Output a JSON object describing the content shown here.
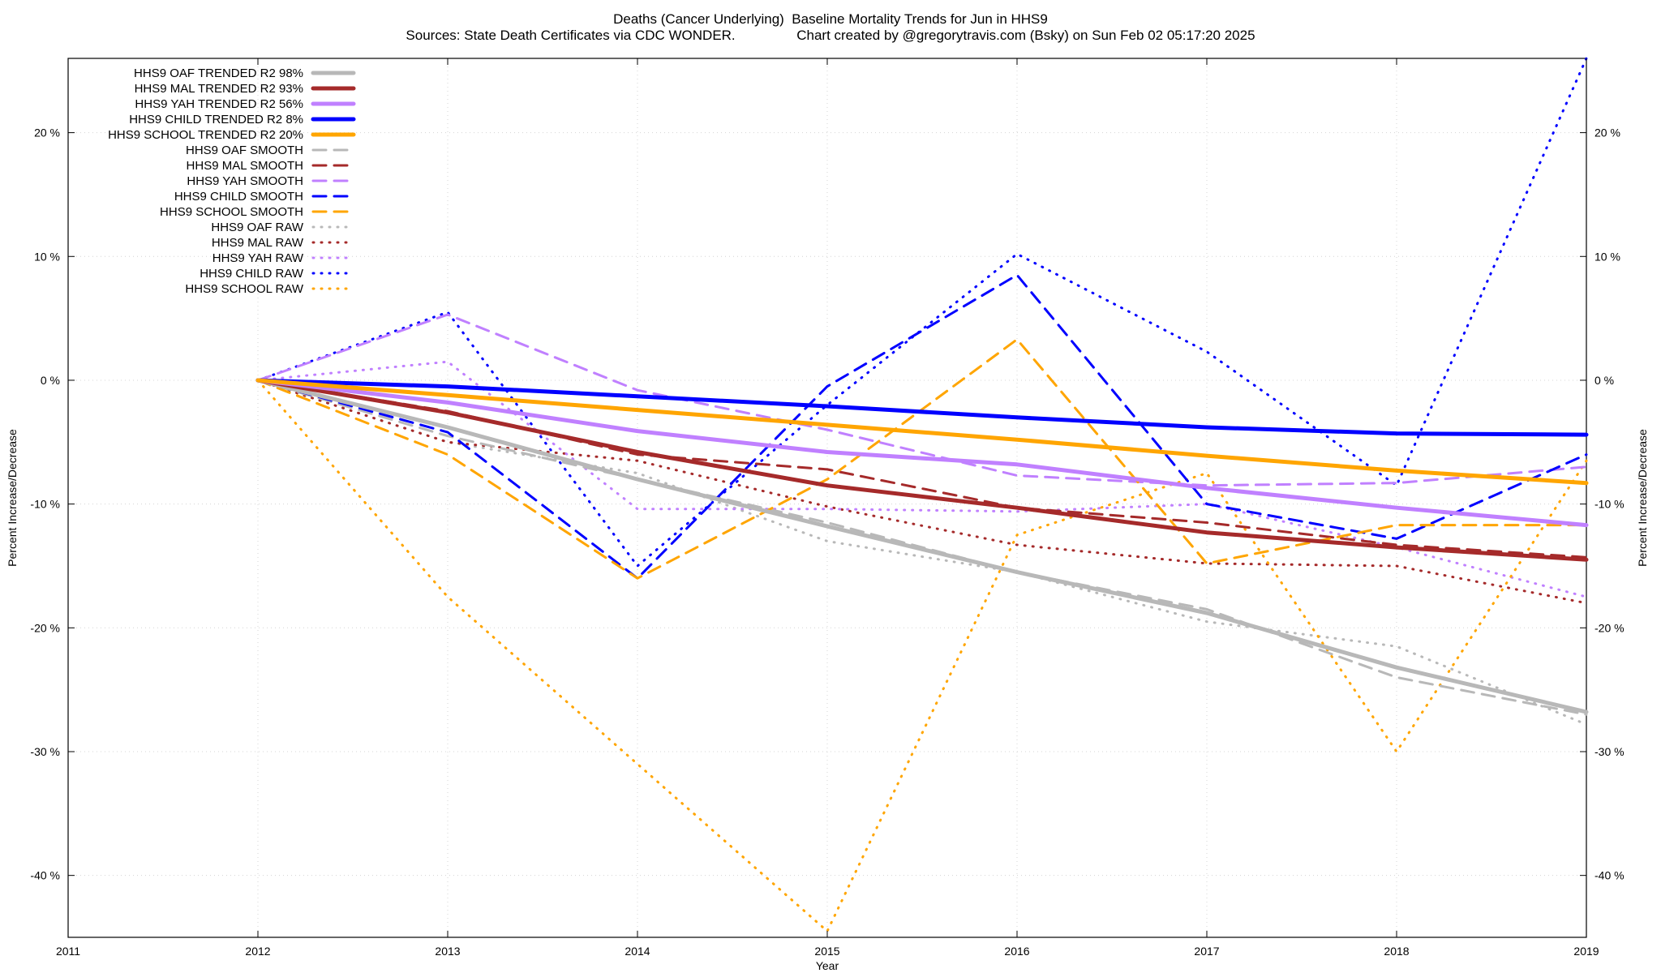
{
  "chart_data": {
    "type": "line",
    "title": "Deaths (Cancer Underlying)  Baseline Mortality Trends for Jun in HHS9",
    "subtitle": "Sources: State Death Certificates via CDC WONDER.                Chart created by @gregorytravis.com (Bsky) on Sun Feb 02 05:17:20 2025",
    "xlabel": "Year",
    "ylabel": "Percent Increase/Decrease",
    "y2label": "Percent Increase/Decrease",
    "xlim": [
      2011,
      2019
    ],
    "ylim": [
      -45,
      26
    ],
    "xticks": [
      "2011",
      "2012",
      "2013",
      "2014",
      "2015",
      "2016",
      "2017",
      "2018",
      "2019"
    ],
    "yticks": [
      {
        "value": 20,
        "label": "20 %"
      },
      {
        "value": 10,
        "label": "10 %"
      },
      {
        "value": 0,
        "label": "0 %"
      },
      {
        "value": -10,
        "label": "-10 %"
      },
      {
        "value": -20,
        "label": "-20 %"
      },
      {
        "value": -30,
        "label": "-30 %"
      },
      {
        "value": -40,
        "label": "-40 %"
      }
    ],
    "grid": true,
    "legend_position": "top-left",
    "x": [
      2012,
      2013,
      2014,
      2015,
      2016,
      2017,
      2018,
      2019
    ],
    "series": [
      {
        "name": "HHS9 OAF TRENDED R2  98%",
        "style": "solid",
        "color": "#b8b8b8",
        "values": [
          0,
          -3.8,
          -8.0,
          -11.8,
          -15.5,
          -18.8,
          -23.2,
          -26.8
        ]
      },
      {
        "name": "HHS9 MAL TRENDED R2  93%",
        "style": "solid",
        "color": "#a52a2a",
        "values": [
          0,
          -2.6,
          -5.8,
          -8.5,
          -10.3,
          -12.3,
          -13.5,
          -14.5
        ]
      },
      {
        "name": "HHS9 YAH TRENDED R2  56%",
        "style": "solid",
        "color": "#c080ff",
        "values": [
          0,
          -1.8,
          -4.1,
          -5.8,
          -6.8,
          -8.7,
          -10.3,
          -11.7
        ]
      },
      {
        "name": "HHS9 CHILD TRENDED R2   8%",
        "style": "solid",
        "color": "#0000ff",
        "values": [
          0,
          -0.5,
          -1.3,
          -2.1,
          -3.0,
          -3.8,
          -4.3,
          -4.4
        ]
      },
      {
        "name": "HHS9 SCHOOL TRENDED R2  20%",
        "style": "solid",
        "color": "#ffa500",
        "values": [
          0,
          -1.2,
          -2.4,
          -3.6,
          -4.8,
          -6.1,
          -7.3,
          -8.3
        ]
      },
      {
        "name": "HHS9 OAF SMOOTH",
        "style": "dashed",
        "color": "#b8b8b8",
        "values": [
          0,
          -4.5,
          -8.0,
          -11.5,
          -15.5,
          -18.5,
          -24.0,
          -27.0
        ]
      },
      {
        "name": "HHS9 MAL SMOOTH",
        "style": "dashed",
        "color": "#a52a2a",
        "values": [
          0,
          -2.5,
          -6.0,
          -7.2,
          -10.3,
          -11.5,
          -13.3,
          -14.3
        ]
      },
      {
        "name": "HHS9 YAH SMOOTH",
        "style": "dashed",
        "color": "#c080ff",
        "values": [
          0,
          5.3,
          -0.8,
          -4.0,
          -7.7,
          -8.5,
          -8.3,
          -7.0
        ]
      },
      {
        "name": "HHS9 CHILD SMOOTH",
        "style": "dashed",
        "color": "#0000ff",
        "values": [
          0,
          -4.2,
          -16.0,
          -0.5,
          8.5,
          -10.0,
          -12.8,
          -6.0
        ]
      },
      {
        "name": "HHS9 SCHOOL SMOOTH",
        "style": "dashed",
        "color": "#ffa500",
        "values": [
          0,
          -6.0,
          -16.0,
          -8.0,
          3.3,
          -14.8,
          -11.7,
          -11.7
        ]
      },
      {
        "name": "HHS9 OAF RAW",
        "style": "dotted",
        "color": "#b8b8b8",
        "values": [
          0,
          -5.0,
          -7.5,
          -13.0,
          -15.5,
          -19.5,
          -21.5,
          -27.8
        ]
      },
      {
        "name": "HHS9 MAL RAW",
        "style": "dotted",
        "color": "#a52a2a",
        "values": [
          0,
          -5.0,
          -6.5,
          -10.2,
          -13.3,
          -14.8,
          -15.0,
          -18.0
        ]
      },
      {
        "name": "HHS9 YAH RAW",
        "style": "dotted",
        "color": "#c080ff",
        "values": [
          0,
          1.5,
          -10.4,
          -10.4,
          -10.6,
          -10.0,
          -13.5,
          -17.5
        ]
      },
      {
        "name": "HHS9 CHILD RAW",
        "style": "dotted",
        "color": "#0000ff",
        "values": [
          0,
          5.5,
          -15.0,
          -2.0,
          10.2,
          2.3,
          -8.5,
          26.0
        ]
      },
      {
        "name": "HHS9 SCHOOL RAW",
        "style": "dotted",
        "color": "#ffa500",
        "values": [
          0,
          -17.5,
          -31.0,
          -44.5,
          -12.5,
          -7.5,
          -30.0,
          -6.5
        ]
      }
    ]
  }
}
